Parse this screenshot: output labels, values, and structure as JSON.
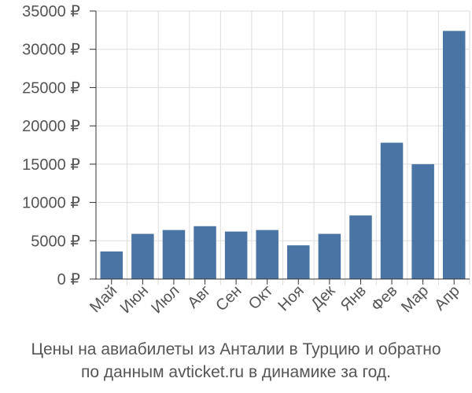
{
  "chart_data": {
    "type": "bar",
    "categories": [
      "Май",
      "Июн",
      "Июл",
      "Авг",
      "Сен",
      "Окт",
      "Ноя",
      "Дек",
      "Янв",
      "Фев",
      "Мар",
      "Апр"
    ],
    "values": [
      3600,
      5900,
      6400,
      6900,
      6200,
      6400,
      4400,
      5900,
      8300,
      17800,
      15000,
      32400
    ],
    "ylim": [
      0,
      35000
    ],
    "yticks": [
      "0 ₽",
      "5000 ₽",
      "10000 ₽",
      "15000 ₽",
      "20000 ₽",
      "25000 ₽",
      "30000 ₽",
      "35000 ₽"
    ],
    "grid": true,
    "bar_color": "#4a74a4",
    "grid_color": "#dddddd",
    "axis_color": "#333333",
    "caption": {
      "line1": "Цены на авиабилеты из Анталии в Турцию и обратно",
      "line2": "по данным avticket.ru в динамике за год."
    }
  }
}
